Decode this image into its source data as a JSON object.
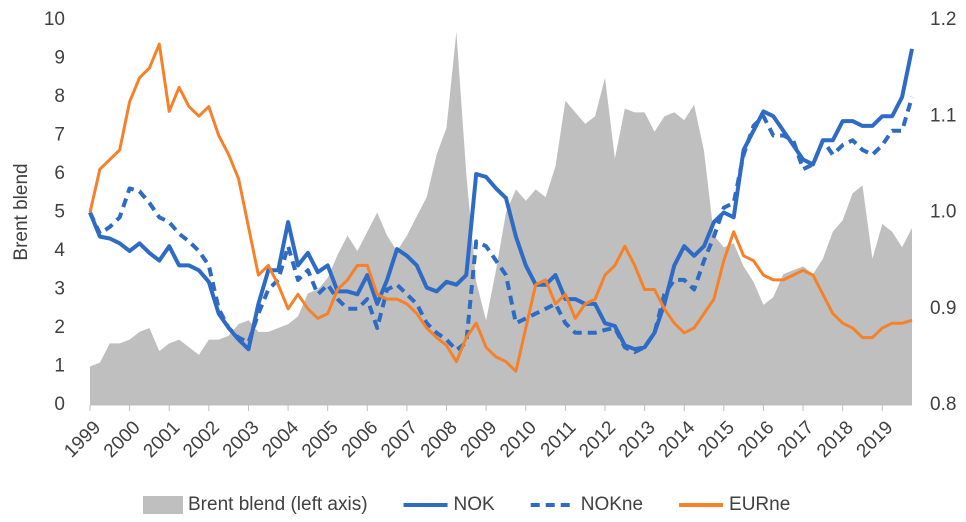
{
  "chart_data": {
    "type": "line",
    "ylabel": "Brent blend",
    "x": [
      1999,
      1999.25,
      1999.5,
      1999.75,
      2000,
      2000.25,
      2000.5,
      2000.75,
      2001,
      2001.25,
      2001.5,
      2001.75,
      2002,
      2002.25,
      2002.5,
      2002.75,
      2003,
      2003.25,
      2003.5,
      2003.75,
      2004,
      2004.25,
      2004.5,
      2004.75,
      2005,
      2005.25,
      2005.5,
      2005.75,
      2006,
      2006.25,
      2006.5,
      2006.75,
      2007,
      2007.25,
      2007.5,
      2007.75,
      2008,
      2008.25,
      2008.5,
      2008.75,
      2009,
      2009.25,
      2009.5,
      2009.75,
      2010,
      2010.25,
      2010.5,
      2010.75,
      2011,
      2011.25,
      2011.5,
      2011.75,
      2012,
      2012.25,
      2012.5,
      2012.75,
      2013,
      2013.25,
      2013.5,
      2013.75,
      2014,
      2014.25,
      2014.5,
      2014.75,
      2015,
      2015.25,
      2015.5,
      2015.75,
      2016,
      2016.25,
      2016.5,
      2016.75,
      2017,
      2017.25,
      2017.5,
      2017.75,
      2018,
      2018.25,
      2018.5,
      2018.75,
      2019,
      2019.25,
      2019.5,
      2019.75
    ],
    "xlim": [
      1999,
      2019.75
    ],
    "xticks": [
      1999,
      2000,
      2001,
      2002,
      2003,
      2004,
      2005,
      2006,
      2007,
      2008,
      2009,
      2010,
      2011,
      2012,
      2013,
      2014,
      2015,
      2016,
      2017,
      2018,
      2019
    ],
    "ylim": [
      0,
      10
    ],
    "yticks": [
      0,
      1,
      2,
      3,
      4,
      5,
      6,
      7,
      8,
      9,
      10
    ],
    "y2lim": [
      0.8,
      1.2
    ],
    "y2ticks": [
      0.8,
      0.9,
      {
        "value": 1,
        "label": "1.0"
      },
      1.1,
      1.2
    ],
    "legend": "bottom",
    "series": [
      {
        "name": "Brent blend (left axis)",
        "type": "area",
        "color": "#bfbfbf",
        "axis": "y",
        "values": [
          1.0,
          1.1,
          1.6,
          1.6,
          1.7,
          1.9,
          2.0,
          1.4,
          1.6,
          1.7,
          1.5,
          1.3,
          1.7,
          1.7,
          1.8,
          2.1,
          2.2,
          1.9,
          1.9,
          2.0,
          2.1,
          2.3,
          2.9,
          3.0,
          3.3,
          3.9,
          4.4,
          4.0,
          4.5,
          5.0,
          4.4,
          4.0,
          4.4,
          4.9,
          5.4,
          6.5,
          7.2,
          9.7,
          6.0,
          3.2,
          2.2,
          3.5,
          5.0,
          5.6,
          5.3,
          5.6,
          5.4,
          6.2,
          7.9,
          7.6,
          7.3,
          7.5,
          8.5,
          6.4,
          7.7,
          7.6,
          7.6,
          7.1,
          7.5,
          7.6,
          7.4,
          7.8,
          6.6,
          4.4,
          4.1,
          4.2,
          3.6,
          3.2,
          2.6,
          2.8,
          3.4,
          3.5,
          3.6,
          3.4,
          3.8,
          4.5,
          4.8,
          5.5,
          5.7,
          3.8,
          4.7,
          4.5,
          4.1,
          4.6
        ]
      },
      {
        "name": "NOK",
        "type": "line",
        "color": "#2e6bc4",
        "dash": false,
        "axis": "y2",
        "values": [
          1.0,
          0.975,
          0.973,
          0.968,
          0.96,
          0.968,
          0.958,
          0.95,
          0.965,
          0.945,
          0.945,
          0.94,
          0.928,
          0.895,
          0.88,
          0.868,
          0.858,
          0.905,
          0.94,
          0.94,
          0.99,
          0.945,
          0.958,
          0.938,
          0.945,
          0.918,
          0.918,
          0.915,
          0.935,
          0.905,
          0.93,
          0.962,
          0.955,
          0.945,
          0.922,
          0.918,
          0.928,
          0.925,
          0.935,
          1.04,
          1.037,
          1.025,
          1.015,
          0.975,
          0.945,
          0.925,
          0.925,
          0.935,
          0.91,
          0.91,
          0.905,
          0.905,
          0.885,
          0.882,
          0.862,
          0.858,
          0.86,
          0.875,
          0.905,
          0.945,
          0.965,
          0.955,
          0.965,
          0.99,
          1.0,
          0.995,
          1.065,
          1.085,
          1.105,
          1.1,
          1.085,
          1.07,
          1.055,
          1.05,
          1.075,
          1.075,
          1.095,
          1.095,
          1.09,
          1.09,
          1.1,
          1.1,
          1.12,
          1.17
        ]
      },
      {
        "name": "NOKne",
        "type": "line",
        "color": "#2e6bc4",
        "dash": true,
        "axis": "y2",
        "values": [
          1.0,
          0.978,
          0.985,
          0.995,
          1.025,
          1.022,
          1.01,
          0.995,
          0.99,
          0.978,
          0.97,
          0.96,
          0.945,
          0.9,
          0.88,
          0.87,
          0.865,
          0.895,
          0.92,
          0.93,
          0.965,
          0.93,
          0.94,
          0.915,
          0.925,
          0.91,
          0.9,
          0.9,
          0.91,
          0.88,
          0.92,
          0.925,
          0.915,
          0.905,
          0.885,
          0.875,
          0.868,
          0.857,
          0.865,
          0.97,
          0.965,
          0.95,
          0.935,
          0.885,
          0.89,
          0.895,
          0.9,
          0.905,
          0.885,
          0.875,
          0.875,
          0.875,
          0.878,
          0.88,
          0.86,
          0.855,
          0.86,
          0.875,
          0.915,
          0.93,
          0.93,
          0.92,
          0.95,
          0.975,
          1.005,
          1.01,
          1.06,
          1.09,
          1.1,
          1.08,
          1.08,
          1.075,
          1.045,
          1.05,
          1.075,
          1.06,
          1.07,
          1.075,
          1.065,
          1.06,
          1.07,
          1.085,
          1.085,
          1.12
        ]
      },
      {
        "name": "EURne",
        "type": "line",
        "color": "#f5822a",
        "dash": false,
        "axis": "y2",
        "values": [
          1.0,
          1.045,
          1.055,
          1.065,
          1.115,
          1.14,
          1.15,
          1.175,
          1.105,
          1.13,
          1.11,
          1.1,
          1.11,
          1.08,
          1.06,
          1.035,
          0.985,
          0.935,
          0.945,
          0.925,
          0.9,
          0.915,
          0.9,
          0.89,
          0.895,
          0.92,
          0.93,
          0.945,
          0.945,
          0.915,
          0.91,
          0.91,
          0.905,
          0.895,
          0.88,
          0.87,
          0.862,
          0.845,
          0.87,
          0.885,
          0.86,
          0.85,
          0.845,
          0.835,
          0.88,
          0.925,
          0.93,
          0.905,
          0.915,
          0.89,
          0.905,
          0.91,
          0.935,
          0.945,
          0.965,
          0.945,
          0.92,
          0.92,
          0.9,
          0.885,
          0.875,
          0.88,
          0.895,
          0.91,
          0.95,
          0.98,
          0.955,
          0.95,
          0.935,
          0.93,
          0.93,
          0.935,
          0.94,
          0.935,
          0.915,
          0.895,
          0.885,
          0.88,
          0.87,
          0.87,
          0.88,
          0.885,
          0.885,
          0.888
        ]
      }
    ]
  }
}
